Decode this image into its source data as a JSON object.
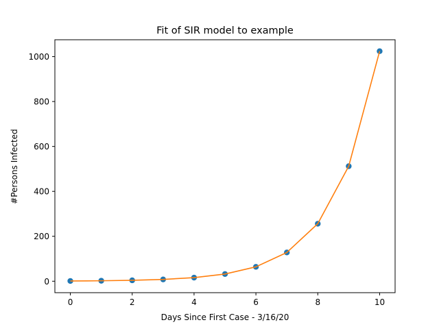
{
  "chart_data": {
    "type": "scatter",
    "title": "Fit of SIR model to example",
    "xlabel": "Days Since First Case - 3/16/20",
    "ylabel": "#Persons Infected",
    "xlim": [
      -0.5,
      10.5
    ],
    "ylim": [
      -51,
      1075
    ],
    "xticks": [
      0,
      2,
      4,
      6,
      8,
      10
    ],
    "yticks": [
      0,
      200,
      400,
      600,
      800,
      1000
    ],
    "grid": false,
    "series": [
      {
        "kind": "scatter",
        "color": "#1f77b4",
        "x": [
          0,
          1,
          2,
          3,
          4,
          5,
          6,
          7,
          8,
          9,
          10
        ],
        "y": [
          1,
          2,
          4,
          8,
          16,
          32,
          64,
          128,
          256,
          512,
          1024
        ]
      },
      {
        "kind": "line",
        "color": "#ff7f0e",
        "x": [
          0,
          1,
          2,
          3,
          4,
          5,
          6,
          7,
          8,
          9,
          10
        ],
        "y": [
          1,
          2,
          4,
          8,
          16,
          32,
          64,
          128,
          256,
          512,
          1024
        ]
      }
    ]
  }
}
